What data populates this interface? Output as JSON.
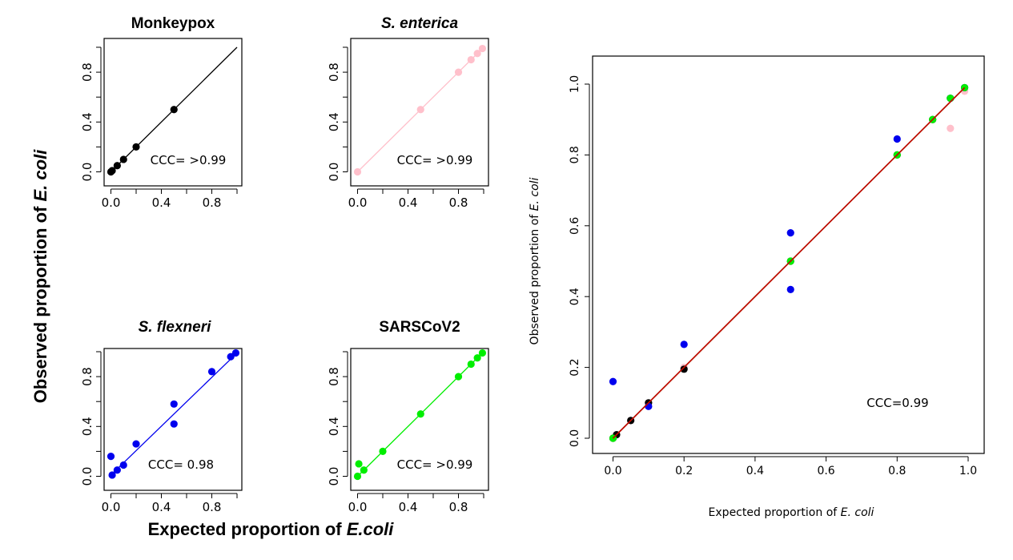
{
  "colors": {
    "monkeypox": "#000000",
    "s_enterica": "#ffc0cb",
    "s_flexneri": "#0000ee",
    "sarscov2": "#00ee00",
    "fit_line": "#cc0000"
  },
  "labels": {
    "shared_ylabel_prefix": "Observed proportion of ",
    "shared_ylabel_italic": "E. coli",
    "shared_xlabel_prefix": "Expected proportion of ",
    "shared_xlabel_italic": "E.coli",
    "combined_xlabel_prefix": "Expected proportion of ",
    "combined_xlabel_italic": "E. coli",
    "combined_ylabel_prefix": "Observed proportion of ",
    "combined_ylabel_italic": "E. coli"
  },
  "chart_data": [
    {
      "id": "monkeypox",
      "type": "scatter",
      "title": "Monkeypox",
      "title_italic": false,
      "annotation": "CCC= >0.99",
      "color": "#000000",
      "xlim": [
        0,
        1
      ],
      "ylim": [
        0,
        1
      ],
      "xticks": [
        "0.0",
        "0.4",
        "0.8"
      ],
      "yticks": [
        "0.0",
        "0.4",
        "0.8"
      ],
      "points": [
        [
          0,
          0
        ],
        [
          0.01,
          0.01
        ],
        [
          0.05,
          0.05
        ],
        [
          0.1,
          0.1
        ],
        [
          0.2,
          0.2
        ],
        [
          0.5,
          0.5
        ]
      ],
      "fit_line": [
        [
          0,
          0
        ],
        [
          1,
          1
        ]
      ]
    },
    {
      "id": "s_enterica",
      "type": "scatter",
      "title": "S. enterica",
      "title_italic": true,
      "annotation": "CCC= >0.99",
      "color": "#ffc0cb",
      "xlim": [
        0,
        1
      ],
      "ylim": [
        0,
        1
      ],
      "xticks": [
        "0.0",
        "0.4",
        "0.8"
      ],
      "yticks": [
        "0.0",
        "0.4",
        "0.8"
      ],
      "points": [
        [
          0,
          0
        ],
        [
          0.5,
          0.5
        ],
        [
          0.8,
          0.8
        ],
        [
          0.9,
          0.9
        ],
        [
          0.95,
          0.95
        ],
        [
          0.99,
          0.99
        ]
      ],
      "fit_line": [
        [
          0,
          0
        ],
        [
          1,
          1
        ]
      ]
    },
    {
      "id": "s_flexneri",
      "type": "scatter",
      "title": "S. flexneri",
      "title_italic": true,
      "annotation": "CCC= 0.98",
      "color": "#0000ee",
      "xlim": [
        0,
        1
      ],
      "ylim": [
        0,
        1
      ],
      "xticks": [
        "0.0",
        "0.4",
        "0.8"
      ],
      "yticks": [
        "0.0",
        "0.4",
        "0.8"
      ],
      "points": [
        [
          0,
          0.16
        ],
        [
          0.01,
          0.01
        ],
        [
          0.05,
          0.05
        ],
        [
          0.1,
          0.09
        ],
        [
          0.2,
          0.26
        ],
        [
          0.5,
          0.58
        ],
        [
          0.5,
          0.42
        ],
        [
          0.8,
          0.84
        ],
        [
          0.95,
          0.96
        ],
        [
          0.99,
          0.99
        ]
      ],
      "fit_line": [
        [
          0,
          0.01
        ],
        [
          1,
          0.99
        ]
      ]
    },
    {
      "id": "sarscov2",
      "type": "scatter",
      "title": "SARSCoV2",
      "title_italic": false,
      "annotation": "CCC= >0.99",
      "color": "#00ee00",
      "xlim": [
        0,
        1
      ],
      "ylim": [
        0,
        1
      ],
      "xticks": [
        "0.0",
        "0.4",
        "0.8"
      ],
      "yticks": [
        "0.0",
        "0.4",
        "0.8"
      ],
      "points": [
        [
          0,
          0
        ],
        [
          0.01,
          0.1
        ],
        [
          0.05,
          0.05
        ],
        [
          0.2,
          0.2
        ],
        [
          0.5,
          0.5
        ],
        [
          0.8,
          0.8
        ],
        [
          0.9,
          0.9
        ],
        [
          0.95,
          0.95
        ],
        [
          0.99,
          0.99
        ]
      ],
      "fit_line": [
        [
          0,
          0
        ],
        [
          1,
          1
        ]
      ]
    },
    {
      "id": "combined",
      "type": "scatter",
      "title": "",
      "annotation": "CCC=0.99",
      "xlim": [
        0,
        1
      ],
      "ylim": [
        0,
        1
      ],
      "xticks": [
        "0.0",
        "0.2",
        "0.4",
        "0.6",
        "0.8",
        "1.0"
      ],
      "yticks": [
        "0.0",
        "0.2",
        "0.4",
        "0.6",
        "0.8",
        "1.0"
      ],
      "series": [
        {
          "color": "#ffc0cb",
          "points": [
            [
              0,
              0
            ],
            [
              0.01,
              0.01
            ],
            [
              0.05,
              0.05
            ],
            [
              0.1,
              0.1
            ],
            [
              0.2,
              0.2
            ],
            [
              0.5,
              0.5
            ],
            [
              0.8,
              0.8
            ],
            [
              0.9,
              0.9
            ],
            [
              0.95,
              0.875
            ],
            [
              0.99,
              0.98
            ]
          ]
        },
        {
          "color": "#000000",
          "points": [
            [
              0,
              0
            ],
            [
              0.01,
              0.01
            ],
            [
              0.05,
              0.05
            ],
            [
              0.1,
              0.1
            ],
            [
              0.2,
              0.195
            ],
            [
              0.5,
              0.5
            ],
            [
              0.8,
              0.8
            ],
            [
              0.9,
              0.9
            ],
            [
              0.95,
              0.96
            ],
            [
              0.99,
              0.99
            ]
          ]
        },
        {
          "color": "#0000ee",
          "points": [
            [
              0,
              0.16
            ],
            [
              0.1,
              0.09
            ],
            [
              0.2,
              0.265
            ],
            [
              0.5,
              0.58
            ],
            [
              0.5,
              0.42
            ],
            [
              0.8,
              0.845
            ],
            [
              0.95,
              0.96
            ],
            [
              0.99,
              0.99
            ]
          ]
        },
        {
          "color": "#00ee00",
          "points": [
            [
              0,
              0
            ],
            [
              0.5,
              0.5
            ],
            [
              0.8,
              0.8
            ],
            [
              0.9,
              0.9
            ],
            [
              0.95,
              0.96
            ],
            [
              0.99,
              0.99
            ]
          ]
        }
      ],
      "fit_lines": [
        {
          "color": "#00aa00",
          "points": [
            [
              0,
              0
            ],
            [
              0.99,
              0.99
            ]
          ]
        },
        {
          "color": "#cc0000",
          "points": [
            [
              0,
              0
            ],
            [
              0.99,
              0.99
            ]
          ]
        }
      ]
    }
  ]
}
